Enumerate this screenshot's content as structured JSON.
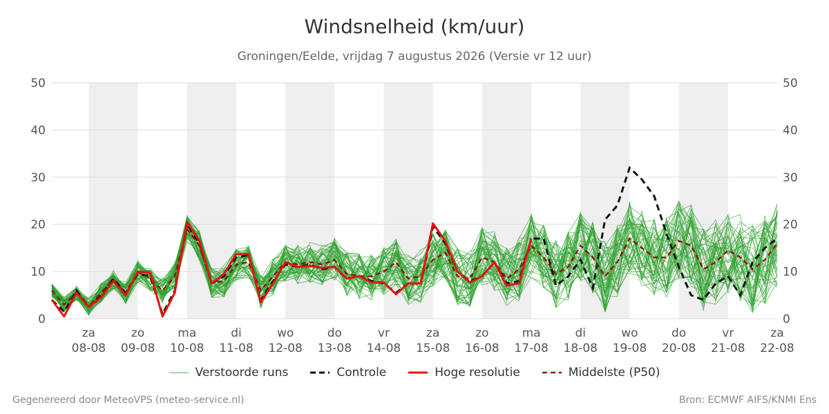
{
  "chart_data": {
    "type": "line",
    "title": "Windsnelheid (km/uur)",
    "subtitle": "Groningen/Eelde, vrijdag  7 augustus 2026 (Versie vr 12 uur)",
    "ylim": [
      0,
      50
    ],
    "y_ticks": [
      0,
      10,
      20,
      30,
      40,
      50
    ],
    "grid": true,
    "weekend_shading": true,
    "x_day_labels": [
      {
        "day": "za",
        "date": "08-08"
      },
      {
        "day": "zo",
        "date": "09-08"
      },
      {
        "day": "ma",
        "date": "10-08"
      },
      {
        "day": "di",
        "date": "11-08"
      },
      {
        "day": "wo",
        "date": "12-08"
      },
      {
        "day": "do",
        "date": "13-08"
      },
      {
        "day": "vr",
        "date": "14-08"
      },
      {
        "day": "za",
        "date": "15-08"
      },
      {
        "day": "zo",
        "date": "16-08"
      },
      {
        "day": "ma",
        "date": "17-08"
      },
      {
        "day": "di",
        "date": "18-08"
      },
      {
        "day": "wo",
        "date": "19-08"
      },
      {
        "day": "do",
        "date": "20-08"
      },
      {
        "day": "vr",
        "date": "21-08"
      },
      {
        "day": "za",
        "date": "22-08"
      }
    ],
    "x_start": "2026-08-07T18:00",
    "x_end": "2026-08-22T12:00",
    "hoge_resolutie": {
      "name": "Hoge resolutie",
      "color": "#e8110f",
      "points": [
        [
          "2026-08-07T18:00",
          4
        ],
        [
          "2026-08-08T00:00",
          0.5
        ],
        [
          "2026-08-08T06:00",
          5.5
        ],
        [
          "2026-08-08T12:00",
          2.5
        ],
        [
          "2026-08-08T18:00",
          4.5
        ],
        [
          "2026-08-09T00:00",
          8
        ],
        [
          "2026-08-09T06:00",
          5
        ],
        [
          "2026-08-09T12:00",
          10
        ],
        [
          "2026-08-09T18:00",
          9.8
        ],
        [
          "2026-08-10T00:00",
          0.5
        ],
        [
          "2026-08-10T06:00",
          5.5
        ],
        [
          "2026-08-10T12:00",
          20.5
        ],
        [
          "2026-08-10T18:00",
          16.5
        ],
        [
          "2026-08-11T00:00",
          7.5
        ],
        [
          "2026-08-11T06:00",
          9.5
        ],
        [
          "2026-08-11T12:00",
          13.7
        ],
        [
          "2026-08-11T18:00",
          13.7
        ],
        [
          "2026-08-12T00:00",
          3.5
        ],
        [
          "2026-08-12T06:00",
          7.5
        ],
        [
          "2026-08-12T12:00",
          12
        ],
        [
          "2026-08-12T18:00",
          11
        ],
        [
          "2026-08-13T00:00",
          11.2
        ],
        [
          "2026-08-13T06:00",
          10.8
        ],
        [
          "2026-08-13T12:00",
          11
        ],
        [
          "2026-08-13T18:00",
          8.5
        ],
        [
          "2026-08-14T00:00",
          9
        ],
        [
          "2026-08-14T06:00",
          7.7
        ],
        [
          "2026-08-14T12:00",
          7.7
        ],
        [
          "2026-08-14T18:00",
          5.2
        ],
        [
          "2026-08-15T00:00",
          7.5
        ],
        [
          "2026-08-15T06:00",
          7.5
        ],
        [
          "2026-08-15T12:00",
          20.2
        ],
        [
          "2026-08-15T18:00",
          16.5
        ],
        [
          "2026-08-16T00:00",
          10
        ],
        [
          "2026-08-16T06:00",
          7.7
        ],
        [
          "2026-08-16T12:00",
          9
        ],
        [
          "2026-08-16T18:00",
          12
        ],
        [
          "2026-08-17T00:00",
          7
        ],
        [
          "2026-08-17T06:00",
          7.5
        ],
        [
          "2026-08-17T12:00",
          17
        ]
      ]
    },
    "controle": {
      "name": "Controle",
      "color": "#111111",
      "points": [
        [
          "2026-08-07T18:00",
          4
        ],
        [
          "2026-08-08T00:00",
          1.5
        ],
        [
          "2026-08-08T06:00",
          6
        ],
        [
          "2026-08-08T12:00",
          2.5
        ],
        [
          "2026-08-08T18:00",
          5
        ],
        [
          "2026-08-09T00:00",
          8.5
        ],
        [
          "2026-08-09T06:00",
          5.5
        ],
        [
          "2026-08-09T12:00",
          9.5
        ],
        [
          "2026-08-09T18:00",
          9
        ],
        [
          "2026-08-10T00:00",
          1
        ],
        [
          "2026-08-10T06:00",
          6
        ],
        [
          "2026-08-10T12:00",
          20
        ],
        [
          "2026-08-10T18:00",
          16
        ],
        [
          "2026-08-11T00:00",
          7.5
        ],
        [
          "2026-08-11T06:00",
          9
        ],
        [
          "2026-08-11T12:00",
          13
        ],
        [
          "2026-08-11T18:00",
          13.5
        ],
        [
          "2026-08-12T00:00",
          4
        ],
        [
          "2026-08-12T06:00",
          8
        ],
        [
          "2026-08-12T12:00",
          11.5
        ],
        [
          "2026-08-12T18:00",
          11
        ],
        [
          "2026-08-13T00:00",
          11.5
        ],
        [
          "2026-08-13T06:00",
          10.5
        ],
        [
          "2026-08-13T12:00",
          11
        ],
        [
          "2026-08-13T18:00",
          8.5
        ],
        [
          "2026-08-14T00:00",
          9
        ],
        [
          "2026-08-14T06:00",
          8
        ],
        [
          "2026-08-14T12:00",
          7.5
        ],
        [
          "2026-08-14T18:00",
          5.5
        ],
        [
          "2026-08-15T00:00",
          7.5
        ],
        [
          "2026-08-15T06:00",
          7.5
        ],
        [
          "2026-08-15T12:00",
          19.5
        ],
        [
          "2026-08-15T18:00",
          16
        ],
        [
          "2026-08-16T00:00",
          10
        ],
        [
          "2026-08-16T06:00",
          8
        ],
        [
          "2026-08-16T12:00",
          9
        ],
        [
          "2026-08-16T18:00",
          12
        ],
        [
          "2026-08-17T00:00",
          7.5
        ],
        [
          "2026-08-17T06:00",
          8
        ],
        [
          "2026-08-17T12:00",
          17
        ],
        [
          "2026-08-17T18:00",
          17
        ],
        [
          "2026-08-18T00:00",
          7
        ],
        [
          "2026-08-18T06:00",
          9
        ],
        [
          "2026-08-18T12:00",
          12.5
        ],
        [
          "2026-08-18T18:00",
          6.5
        ],
        [
          "2026-08-19T00:00",
          21
        ],
        [
          "2026-08-19T06:00",
          24
        ],
        [
          "2026-08-19T12:00",
          32
        ],
        [
          "2026-08-19T18:00",
          29.5
        ],
        [
          "2026-08-20T00:00",
          26
        ],
        [
          "2026-08-20T06:00",
          18
        ],
        [
          "2026-08-20T12:00",
          11
        ],
        [
          "2026-08-20T18:00",
          5
        ],
        [
          "2026-08-21T00:00",
          4
        ],
        [
          "2026-08-21T06:00",
          7.5
        ],
        [
          "2026-08-21T12:00",
          9
        ],
        [
          "2026-08-21T18:00",
          5
        ],
        [
          "2026-08-22T00:00",
          12
        ],
        [
          "2026-08-22T06:00",
          15
        ],
        [
          "2026-08-22T12:00",
          17
        ]
      ]
    },
    "middelste_p50": {
      "name": "Middelste (P50)",
      "color": "#8b1a0e",
      "points": [
        [
          "2026-08-07T18:00",
          6
        ],
        [
          "2026-08-08T00:00",
          3
        ],
        [
          "2026-08-08T06:00",
          5.5
        ],
        [
          "2026-08-08T12:00",
          2.5
        ],
        [
          "2026-08-08T18:00",
          5.5
        ],
        [
          "2026-08-09T00:00",
          8.2
        ],
        [
          "2026-08-09T06:00",
          5.5
        ],
        [
          "2026-08-09T12:00",
          10
        ],
        [
          "2026-08-09T18:00",
          8.5
        ],
        [
          "2026-08-10T00:00",
          6
        ],
        [
          "2026-08-10T06:00",
          9
        ],
        [
          "2026-08-10T12:00",
          19
        ],
        [
          "2026-08-10T18:00",
          15.5
        ],
        [
          "2026-08-11T00:00",
          7.5
        ],
        [
          "2026-08-11T06:00",
          8
        ],
        [
          "2026-08-11T12:00",
          11.5
        ],
        [
          "2026-08-11T18:00",
          12
        ],
        [
          "2026-08-12T00:00",
          6
        ],
        [
          "2026-08-12T06:00",
          9
        ],
        [
          "2026-08-12T12:00",
          12
        ],
        [
          "2026-08-12T18:00",
          11.5
        ],
        [
          "2026-08-13T00:00",
          12
        ],
        [
          "2026-08-13T06:00",
          11.5
        ],
        [
          "2026-08-13T12:00",
          12.5
        ],
        [
          "2026-08-13T18:00",
          9.5
        ],
        [
          "2026-08-14T00:00",
          9
        ],
        [
          "2026-08-14T06:00",
          9
        ],
        [
          "2026-08-14T12:00",
          10
        ],
        [
          "2026-08-14T18:00",
          12
        ],
        [
          "2026-08-15T00:00",
          8.5
        ],
        [
          "2026-08-15T06:00",
          9
        ],
        [
          "2026-08-15T12:00",
          12.5
        ],
        [
          "2026-08-15T18:00",
          14
        ],
        [
          "2026-08-16T00:00",
          9
        ],
        [
          "2026-08-16T06:00",
          8.5
        ],
        [
          "2026-08-16T12:00",
          13
        ],
        [
          "2026-08-16T18:00",
          12
        ],
        [
          "2026-08-17T00:00",
          8.5
        ],
        [
          "2026-08-17T06:00",
          10.5
        ],
        [
          "2026-08-17T12:00",
          15.5
        ],
        [
          "2026-08-17T18:00",
          13
        ],
        [
          "2026-08-18T00:00",
          9.5
        ],
        [
          "2026-08-18T06:00",
          11
        ],
        [
          "2026-08-18T12:00",
          15.5
        ],
        [
          "2026-08-18T18:00",
          13
        ],
        [
          "2026-08-19T00:00",
          9
        ],
        [
          "2026-08-19T06:00",
          12
        ],
        [
          "2026-08-19T12:00",
          17
        ],
        [
          "2026-08-19T18:00",
          15
        ],
        [
          "2026-08-20T00:00",
          13
        ],
        [
          "2026-08-20T06:00",
          13
        ],
        [
          "2026-08-20T12:00",
          16.5
        ],
        [
          "2026-08-20T18:00",
          15.5
        ],
        [
          "2026-08-21T00:00",
          10.5
        ],
        [
          "2026-08-21T06:00",
          12
        ],
        [
          "2026-08-21T12:00",
          14.5
        ],
        [
          "2026-08-21T18:00",
          13
        ],
        [
          "2026-08-22T00:00",
          10.5
        ],
        [
          "2026-08-22T06:00",
          12.5
        ],
        [
          "2026-08-22T12:00",
          16
        ]
      ]
    },
    "verstoorde_runs": {
      "name": "Verstoorde runs",
      "color": "#2ca02c",
      "count": 50,
      "seed": 7
    },
    "legend": {
      "placement": "bottom",
      "entries": [
        {
          "label": "Verstoorde runs",
          "style": "thin-line",
          "color": "#4caf50"
        },
        {
          "label": "Controle",
          "style": "dashed",
          "color": "#111111"
        },
        {
          "label": "Hoge resolutie",
          "style": "solid",
          "color": "#e8110f"
        },
        {
          "label": "Middelste (P50)",
          "style": "dashed",
          "color": "#8b1a0e"
        }
      ]
    }
  },
  "footer": {
    "left": "Gegenereerd door MeteoVPS (meteo-service.nl)",
    "right": "Bron: ECMWF AIFS/KNMI Ens"
  },
  "colors": {
    "weekend_band": "#efefef",
    "gridline": "#dddddd"
  }
}
